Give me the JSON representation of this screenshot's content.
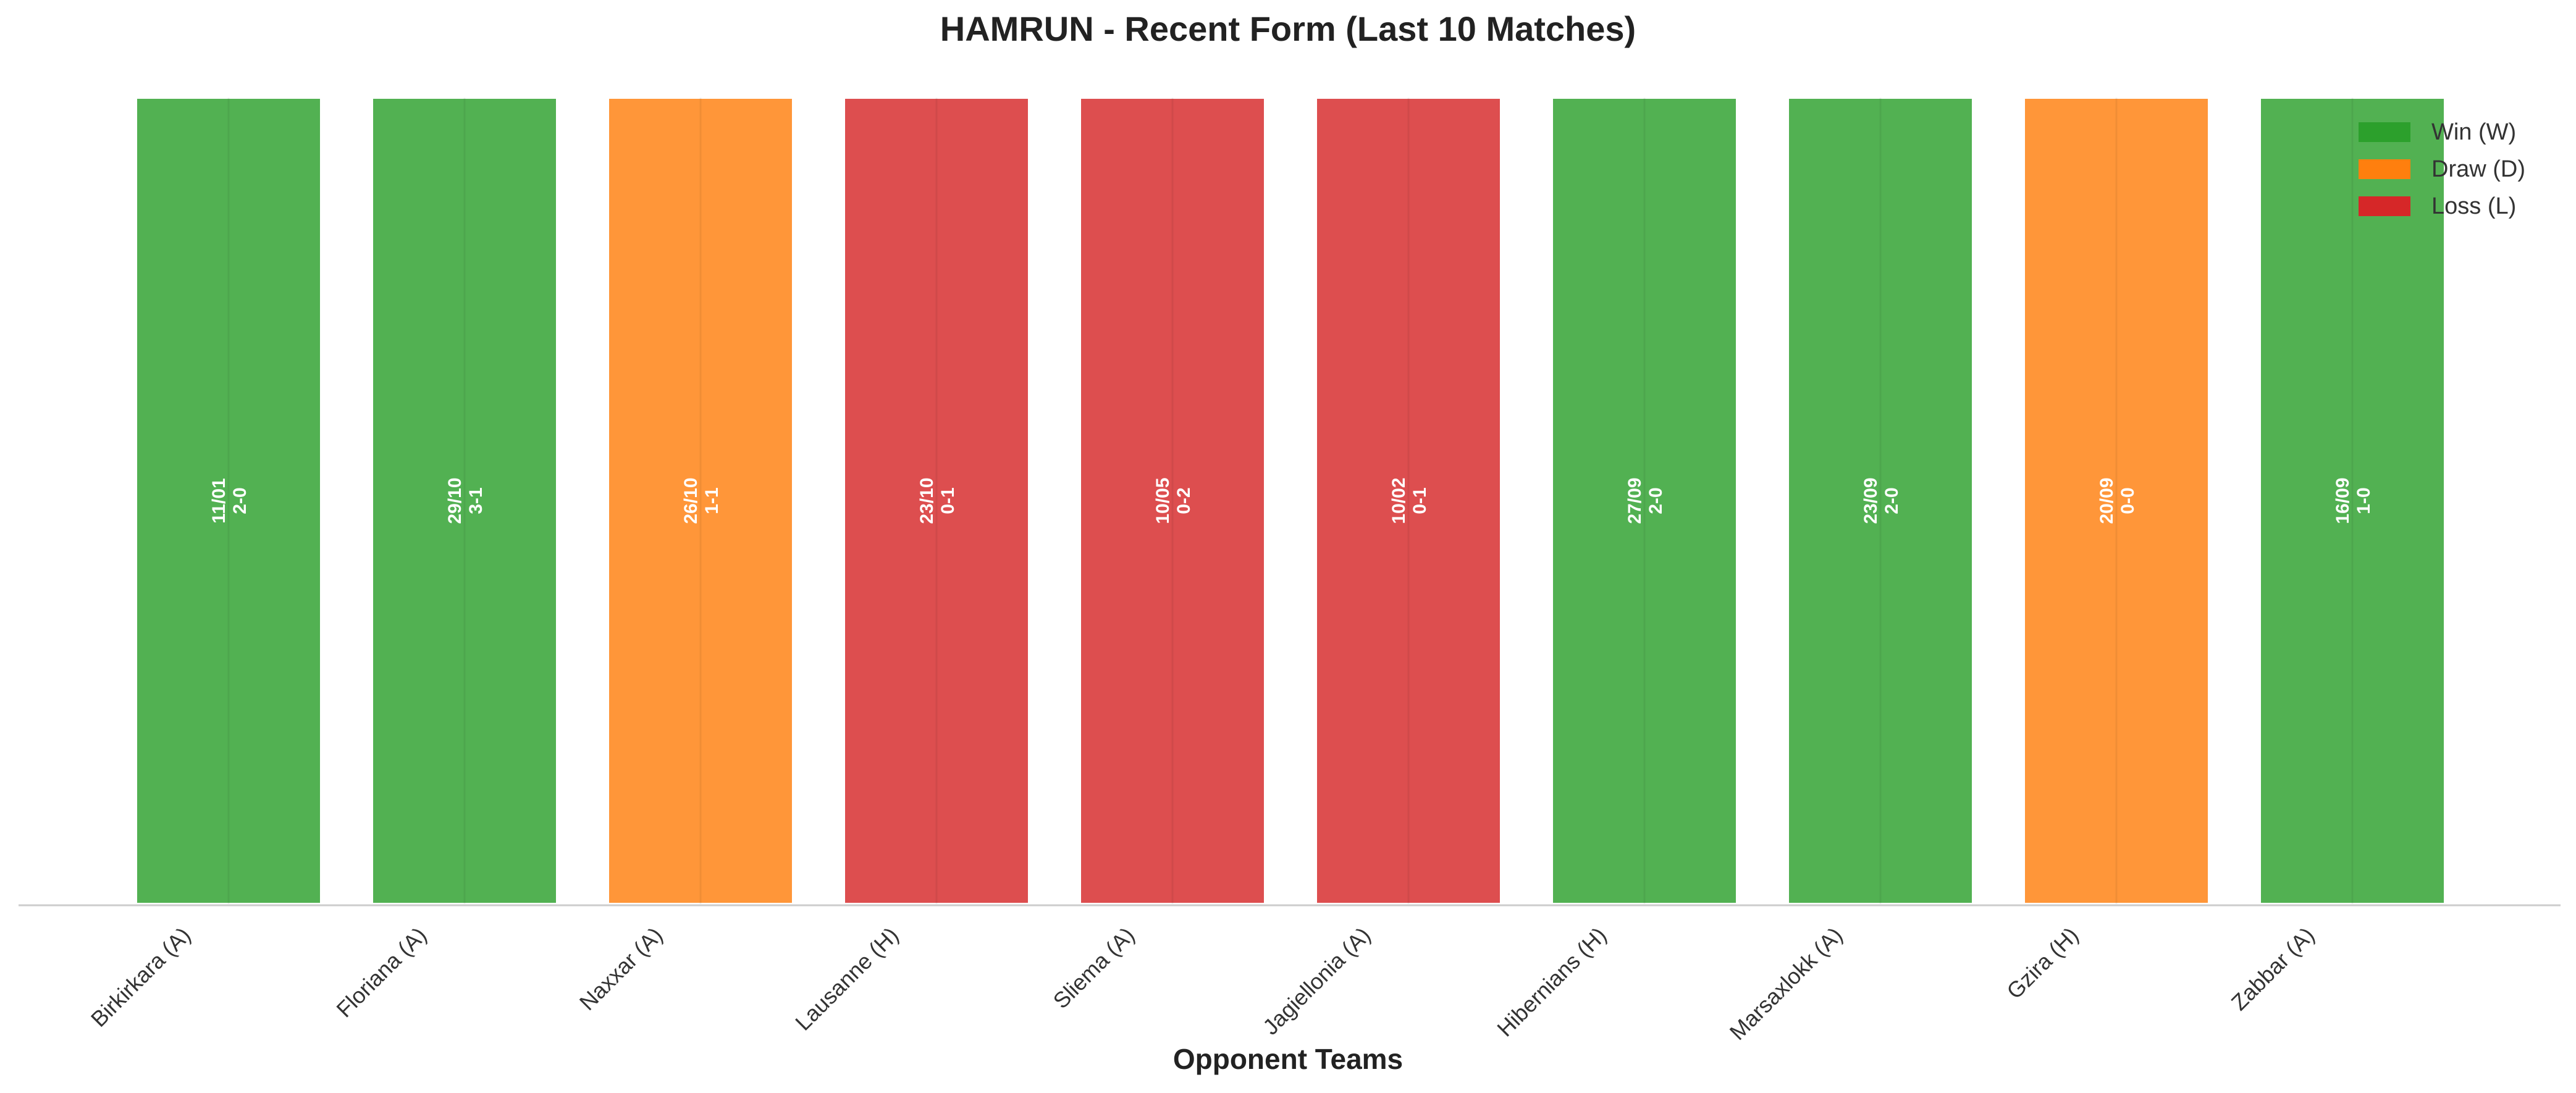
{
  "chart_data": {
    "type": "bar",
    "title": "HAMRUN - Recent Form (Last 10 Matches)",
    "xlabel": "Opponent Teams",
    "ylabel": "",
    "grid": false,
    "legend_position": "top-right",
    "categories": [
      "Birkirkara (A)",
      "Floriana (A)",
      "Naxxar (A)",
      "Lausanne (H)",
      "Sliema (A)",
      "Jagiellonia (A)",
      "Hibernians (H)",
      "Marsaxlokk (A)",
      "Gzira (H)",
      "Zabbar (A)"
    ],
    "values": [
      1,
      1,
      1,
      1,
      1,
      1,
      1,
      1,
      1,
      1
    ],
    "results": [
      "W",
      "W",
      "D",
      "L",
      "L",
      "L",
      "W",
      "W",
      "D",
      "W"
    ],
    "dates": [
      "11/01",
      "29/10",
      "26/10",
      "23/10",
      "10/05",
      "10/02",
      "27/09",
      "23/09",
      "20/09",
      "16/09"
    ],
    "scores": [
      "2-0",
      "3-1",
      "1-1",
      "0-1",
      "0-2",
      "0-1",
      "2-0",
      "2-0",
      "0-0",
      "1-0"
    ],
    "legend": [
      {
        "key": "W",
        "label": "Win (W)",
        "color": "#2ca02c"
      },
      {
        "key": "D",
        "label": "Draw (D)",
        "color": "#ff7f0e"
      },
      {
        "key": "L",
        "label": "Loss (L)",
        "color": "#d62728"
      }
    ],
    "bar_opacity": 0.82,
    "colors": {
      "W": "#2ca02c",
      "D": "#ff7f0e",
      "L": "#d62728",
      "axis": "#cccccc",
      "bar_label": "#ffffff"
    }
  }
}
